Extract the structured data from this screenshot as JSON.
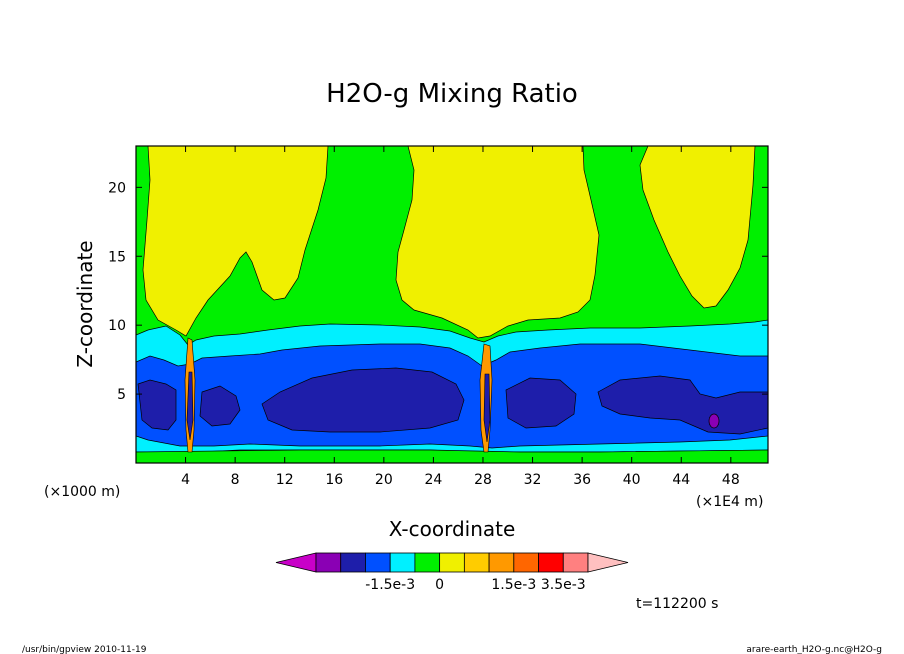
{
  "chart_data": {
    "type": "heatmap",
    "title": "H2O-g Mixing Ratio",
    "xlabel": "X-coordinate",
    "ylabel": "Z-coordinate",
    "x_unit": "(×1000 m)",
    "x_scale_note": "(×1E4 m)",
    "x_ticks": [
      "4",
      "8",
      "12",
      "16",
      "20",
      "24",
      "28",
      "32",
      "36",
      "40",
      "44",
      "48"
    ],
    "y_ticks": [
      "5",
      "10",
      "15",
      "20"
    ],
    "xlim": [
      0,
      51
    ],
    "ylim": [
      0,
      23
    ],
    "colorbar": {
      "colors": [
        "#c800c8",
        "#8a00b4",
        "#1e1eaa",
        "#0050ff",
        "#00f0ff",
        "#00f000",
        "#f0f000",
        "#ffcc00",
        "#ff9900",
        "#ff6600",
        "#ff0000",
        "#ff8080",
        "#ffc0c0"
      ],
      "labels": [
        "-1.5e-3",
        "0",
        "1.5e-3",
        "3.5e-3"
      ]
    },
    "time_label": "t=112200 s",
    "regions": [
      {
        "level": "green",
        "color": "#00f000",
        "shape": "background"
      },
      {
        "level": "yellow-left",
        "color": "#f0f000",
        "x": [
          0.8,
          16
        ],
        "z_bottom": 10.5,
        "z_top": 23
      },
      {
        "level": "yellow-center",
        "color": "#f0f000",
        "x": [
          21,
          37
        ],
        "z_bottom": 11,
        "z_top": 23
      },
      {
        "level": "yellow-right",
        "color": "#f0f000",
        "x": [
          41,
          51
        ],
        "z_bottom": 12.5,
        "z_top": 23
      },
      {
        "level": "cyan",
        "color": "#00f0ff",
        "x": [
          0,
          51
        ],
        "z_bottom": 1.5,
        "z_top": 10
      },
      {
        "level": "blue",
        "color": "#0050ff",
        "x": [
          0,
          51
        ],
        "z_bottom": 1.5,
        "z_top": 8
      },
      {
        "level": "navy",
        "color": "#1e1eaa",
        "x": [
          0,
          51
        ],
        "z_bottom": 2,
        "z_top": 6.5
      },
      {
        "level": "purple",
        "color": "#8a00b4",
        "x": [
          47,
          47
        ],
        "z": [
          3,
          3
        ]
      }
    ]
  },
  "footer": {
    "left": "/usr/bin/gpview   2010-11-19",
    "right": "arare-earth_H2O-g.nc@H2O-g"
  }
}
